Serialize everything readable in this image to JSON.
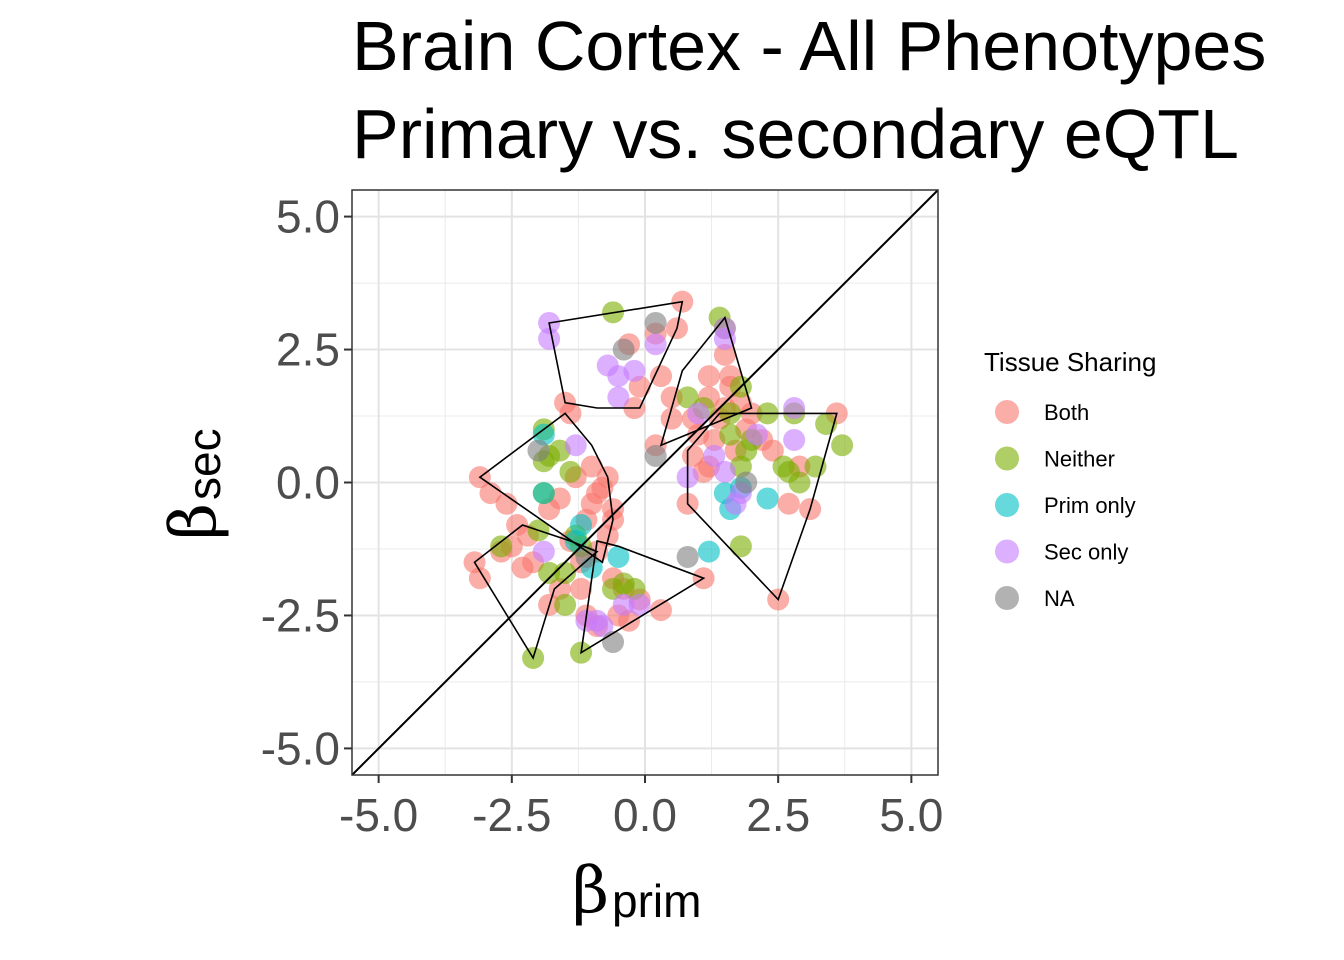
{
  "chart_data": {
    "type": "scatter",
    "title_lines": [
      "Brain Cortex - All Phenotypes",
      "Primary vs. secondary eQTL"
    ],
    "xlabel": {
      "symbol": "β",
      "subscript": "prim"
    },
    "ylabel": {
      "symbol": "β",
      "subscript": "sec"
    },
    "xlim": [
      -5.5,
      5.5
    ],
    "ylim": [
      -5.5,
      5.5
    ],
    "xticks": [
      -5.0,
      -2.5,
      0.0,
      2.5,
      5.0
    ],
    "xtick_labels": [
      "-5.0",
      "-2.5",
      "0.0",
      "2.5",
      "5.0"
    ],
    "yticks": [
      -5.0,
      -2.5,
      0.0,
      2.5,
      5.0
    ],
    "ytick_labels": [
      "-5.0",
      "-2.5",
      "0.0",
      "2.5",
      "5.0"
    ],
    "grid": true,
    "reference_line": "y = x",
    "legend": {
      "title": "Tissue Sharing",
      "position": "right",
      "entries": [
        {
          "label": "Both",
          "color": "#F8766D"
        },
        {
          "label": "Neither",
          "color": "#7CAE00"
        },
        {
          "label": "Prim only",
          "color": "#00BFC4"
        },
        {
          "label": "Sec only",
          "color": "#C77CFF"
        },
        {
          "label": "NA",
          "color": "#7F7F7F"
        }
      ]
    },
    "series": [
      {
        "name": "Both",
        "color": "#F8766D",
        "points": [
          [
            0.7,
            3.4
          ],
          [
            0.6,
            2.9
          ],
          [
            0.2,
            2.8
          ],
          [
            -0.3,
            2.6
          ],
          [
            0.3,
            2.0
          ],
          [
            0.5,
            1.6
          ],
          [
            -0.1,
            1.8
          ],
          [
            -0.2,
            1.4
          ],
          [
            0.2,
            0.7
          ],
          [
            0.5,
            1.2
          ],
          [
            1.5,
            2.4
          ],
          [
            1.6,
            2.0
          ],
          [
            1.2,
            1.6
          ],
          [
            1.4,
            1.2
          ],
          [
            1.0,
            0.9
          ],
          [
            0.9,
            0.5
          ],
          [
            1.2,
            0.3
          ],
          [
            1.7,
            0.6
          ],
          [
            1.9,
            1.0
          ],
          [
            1.3,
            0.8
          ],
          [
            1.8,
            1.5
          ],
          [
            2.2,
            0.8
          ],
          [
            2.4,
            0.6
          ],
          [
            0.8,
            -0.4
          ],
          [
            1.1,
            0.2
          ],
          [
            0.9,
            1.2
          ],
          [
            1.5,
            1.4
          ],
          [
            2.0,
            1.3
          ],
          [
            1.6,
            1.8
          ],
          [
            1.2,
            2.0
          ],
          [
            2.9,
            0.3
          ],
          [
            3.1,
            -0.5
          ],
          [
            2.7,
            -0.4
          ],
          [
            3.6,
            1.3
          ],
          [
            2.5,
            -2.2
          ],
          [
            1.1,
            -1.8
          ],
          [
            -3.1,
            0.1
          ],
          [
            -2.9,
            -0.2
          ],
          [
            -2.6,
            -0.4
          ],
          [
            -2.4,
            -0.8
          ],
          [
            -2.7,
            -1.3
          ],
          [
            -2.5,
            -1.2
          ],
          [
            -2.2,
            -1.0
          ],
          [
            -2.1,
            -1.5
          ],
          [
            -2.3,
            -1.6
          ],
          [
            -3.2,
            -1.5
          ],
          [
            -3.1,
            -1.8
          ],
          [
            -1.8,
            -0.5
          ],
          [
            -1.6,
            -0.3
          ],
          [
            -1.3,
            0.1
          ],
          [
            -1.0,
            -0.4
          ],
          [
            -0.8,
            -0.1
          ],
          [
            -0.7,
            0.1
          ],
          [
            -0.6,
            -0.5
          ],
          [
            -1.1,
            -0.7
          ],
          [
            -1.4,
            -1.1
          ],
          [
            -0.9,
            -1.3
          ],
          [
            -1.2,
            -1.5
          ],
          [
            -0.7,
            -1.0
          ],
          [
            -0.6,
            -0.7
          ],
          [
            -1.5,
            1.5
          ],
          [
            -1.4,
            1.3
          ],
          [
            -1.0,
            0.3
          ],
          [
            -0.9,
            -0.2
          ],
          [
            -1.8,
            -2.3
          ],
          [
            -1.6,
            -2.0
          ],
          [
            -1.2,
            -2.0
          ],
          [
            -0.6,
            -1.8
          ],
          [
            -0.5,
            -2.5
          ],
          [
            -0.3,
            -2.6
          ],
          [
            -0.1,
            -2.2
          ],
          [
            0.3,
            -2.4
          ],
          [
            -0.9,
            -2.7
          ],
          [
            -1.1,
            -2.5
          ],
          [
            -0.4,
            -2.0
          ]
        ]
      },
      {
        "name": "Neither",
        "color": "#7CAE00",
        "points": [
          [
            -0.6,
            3.2
          ],
          [
            1.4,
            3.1
          ],
          [
            1.5,
            2.9
          ],
          [
            0.8,
            1.6
          ],
          [
            1.1,
            1.4
          ],
          [
            1.6,
            1.3
          ],
          [
            1.8,
            1.8
          ],
          [
            2.0,
            0.8
          ],
          [
            1.8,
            0.3
          ],
          [
            1.6,
            0.9
          ],
          [
            2.6,
            0.3
          ],
          [
            2.9,
            0.0
          ],
          [
            3.2,
            0.3
          ],
          [
            3.4,
            1.1
          ],
          [
            3.7,
            0.7
          ],
          [
            2.8,
            1.3
          ],
          [
            2.3,
            1.3
          ],
          [
            1.8,
            -1.2
          ],
          [
            2.7,
            0.2
          ],
          [
            1.9,
            0.6
          ],
          [
            -1.9,
            1.0
          ],
          [
            -1.8,
            0.5
          ],
          [
            -1.9,
            0.4
          ],
          [
            -1.6,
            0.6
          ],
          [
            -1.4,
            0.2
          ],
          [
            -1.9,
            -0.2
          ],
          [
            -2.0,
            -0.9
          ],
          [
            -1.5,
            -1.7
          ],
          [
            -2.7,
            -1.2
          ],
          [
            -1.2,
            -1.2
          ],
          [
            -2.1,
            -3.3
          ],
          [
            -1.2,
            -3.2
          ],
          [
            -1.5,
            -2.3
          ],
          [
            -0.6,
            -2.0
          ],
          [
            -0.2,
            -2.0
          ],
          [
            -0.4,
            -1.9
          ],
          [
            -1.3,
            -1.0
          ],
          [
            -1.8,
            -1.7
          ]
        ]
      },
      {
        "name": "Prim only",
        "color": "#00BFC4",
        "points": [
          [
            -1.9,
            0.9
          ],
          [
            -1.9,
            -0.2
          ],
          [
            -1.2,
            -0.8
          ],
          [
            -1.3,
            -1.1
          ],
          [
            -1.0,
            -1.6
          ],
          [
            -0.5,
            -1.4
          ],
          [
            1.5,
            -0.2
          ],
          [
            1.6,
            -0.5
          ],
          [
            2.3,
            -0.3
          ],
          [
            1.2,
            -1.3
          ],
          [
            1.8,
            -0.1
          ]
        ]
      },
      {
        "name": "Sec only",
        "color": "#C77CFF",
        "points": [
          [
            -1.8,
            3.0
          ],
          [
            -1.8,
            2.7
          ],
          [
            -0.7,
            2.2
          ],
          [
            -0.5,
            2.0
          ],
          [
            -0.2,
            2.1
          ],
          [
            -0.5,
            1.6
          ],
          [
            0.2,
            2.6
          ],
          [
            1.5,
            2.7
          ],
          [
            1.5,
            2.9
          ],
          [
            1.0,
            1.3
          ],
          [
            0.8,
            0.1
          ],
          [
            1.5,
            0.2
          ],
          [
            1.7,
            -0.4
          ],
          [
            1.8,
            -0.2
          ],
          [
            2.8,
            1.4
          ],
          [
            2.8,
            0.8
          ],
          [
            2.1,
            0.9
          ],
          [
            -1.3,
            0.7
          ],
          [
            -1.9,
            -1.3
          ],
          [
            -1.1,
            -2.6
          ],
          [
            -0.8,
            -2.7
          ],
          [
            -0.9,
            -2.6
          ],
          [
            -0.1,
            -2.3
          ],
          [
            -0.4,
            -2.3
          ],
          [
            1.3,
            0.5
          ]
        ]
      },
      {
        "name": "NA",
        "color": "#7F7F7F",
        "points": [
          [
            0.2,
            3.0
          ],
          [
            -0.4,
            2.5
          ],
          [
            -2.0,
            0.6
          ],
          [
            0.8,
            -1.4
          ],
          [
            -0.6,
            -3.0
          ],
          [
            1.9,
            0.0
          ],
          [
            0.2,
            0.5
          ],
          [
            -1.1,
            -1.4
          ]
        ]
      }
    ],
    "hulls": [
      [
        [
          -1.8,
          3.0
        ],
        [
          0.7,
          3.4
        ],
        [
          0.6,
          2.9
        ],
        [
          -0.1,
          1.4
        ],
        [
          -0.9,
          1.4
        ],
        [
          -1.5,
          1.5
        ]
      ],
      [
        [
          1.5,
          3.1
        ],
        [
          0.7,
          2.1
        ],
        [
          0.3,
          0.7
        ],
        [
          2.0,
          1.4
        ]
      ],
      [
        [
          -1.5,
          1.3
        ],
        [
          -3.1,
          0.1
        ],
        [
          -0.8,
          -1.5
        ],
        [
          -0.6,
          -0.7
        ],
        [
          -0.7,
          0.1
        ],
        [
          -1.0,
          0.7
        ]
      ],
      [
        [
          -2.3,
          -0.8
        ],
        [
          -3.2,
          -1.5
        ],
        [
          -2.1,
          -3.3
        ],
        [
          -1.7,
          -2.0
        ],
        [
          -0.9,
          -1.3
        ],
        [
          -1.4,
          -1.1
        ]
      ],
      [
        [
          1.4,
          1.3
        ],
        [
          3.6,
          1.3
        ],
        [
          3.1,
          -0.5
        ],
        [
          2.5,
          -2.2
        ],
        [
          0.8,
          -0.4
        ],
        [
          0.8,
          0.6
        ]
      ],
      [
        [
          -0.9,
          -1.1
        ],
        [
          -1.2,
          -3.2
        ],
        [
          1.1,
          -1.8
        ],
        [
          -0.5,
          -1.2
        ]
      ]
    ]
  }
}
